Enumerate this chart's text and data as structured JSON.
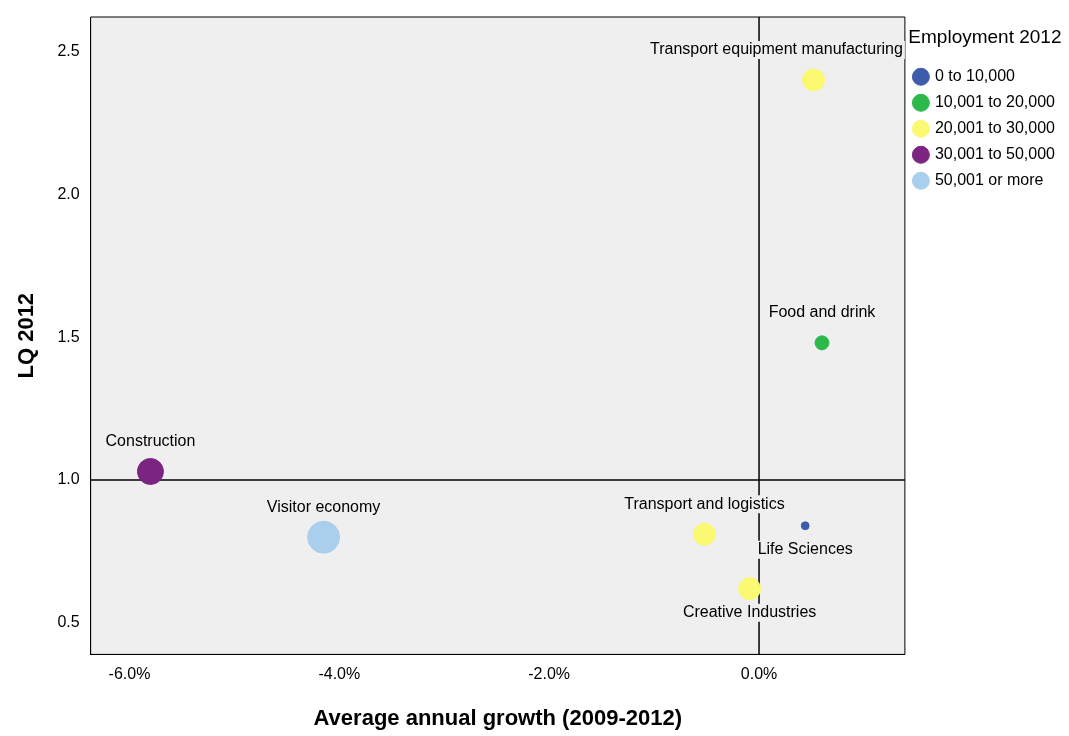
{
  "chart_data": {
    "type": "bubble",
    "xlabel": "Average annual growth (2009-2012)",
    "ylabel": "LQ 2012",
    "legend_title": "Employment 2012",
    "series": [
      {
        "name": "0 to 10,000",
        "color": "#3f5bab",
        "x": [
          0.44
        ],
        "values": [
          0.84
        ],
        "sizes": [
          0.06
        ]
      },
      {
        "name": "10,001 to 20,000",
        "color": "#2db84b",
        "x": [
          0.6
        ],
        "values": [
          1.48
        ],
        "sizes": [
          0.19
        ]
      },
      {
        "name": "20,001 to 30,000",
        "color": "#fbf872",
        "x": [
          0.52,
          -0.52,
          -0.09
        ],
        "values": [
          2.4,
          0.81,
          0.62
        ],
        "sizes": [
          0.47,
          0.47,
          0.47
        ]
      },
      {
        "name": "30,001 to 50,000",
        "color": "#7b2481",
        "x": [
          -5.8
        ],
        "values": [
          1.03
        ],
        "sizes": [
          0.66
        ]
      },
      {
        "name": "50,001 or more",
        "color": "#a9cfec",
        "x": [
          -4.15
        ],
        "values": [
          0.8
        ],
        "sizes": [
          1
        ]
      }
    ],
    "xlim": [
      -6.37,
      1.39
    ],
    "ylim": [
      0.39,
      2.62
    ],
    "xticks": [
      {
        "value": -6,
        "label": "-6.0%"
      },
      {
        "value": -4,
        "label": "-4.0%"
      },
      {
        "value": -2,
        "label": "-2.0%"
      },
      {
        "value": 0,
        "label": "0.0%"
      }
    ],
    "yticks": [
      {
        "value": 0.5,
        "label": "0.5"
      },
      {
        "value": 1,
        "label": "1.0"
      },
      {
        "value": 1.5,
        "label": "1.5"
      },
      {
        "value": 2,
        "label": "2.0"
      },
      {
        "value": 2.5,
        "label": "2.5"
      }
    ],
    "ref_lines": [
      {
        "axis": "x",
        "value": 0,
        "color": "#000000"
      },
      {
        "axis": "y",
        "value": 1,
        "color": "#000000"
      }
    ],
    "annotations": [
      {
        "text": "Transport equipment manufacturing",
        "x": 0.52,
        "y": 2.4
      },
      {
        "text": "Food and drink",
        "x": 0.6,
        "y": 1.48
      },
      {
        "text": "Construction",
        "x": -5.8,
        "y": 1.03
      },
      {
        "text": "Visitor economy",
        "x": -4.15,
        "y": 0.8
      },
      {
        "text": "Transport and logistics",
        "x": -0.52,
        "y": 0.81
      },
      {
        "text": "Life Sciences",
        "x": 0.44,
        "y": 0.84
      },
      {
        "text": "Creative Industries",
        "x": -0.09,
        "y": 0.62
      }
    ],
    "grid": false,
    "legend": "top right",
    "marker": "circle"
  }
}
